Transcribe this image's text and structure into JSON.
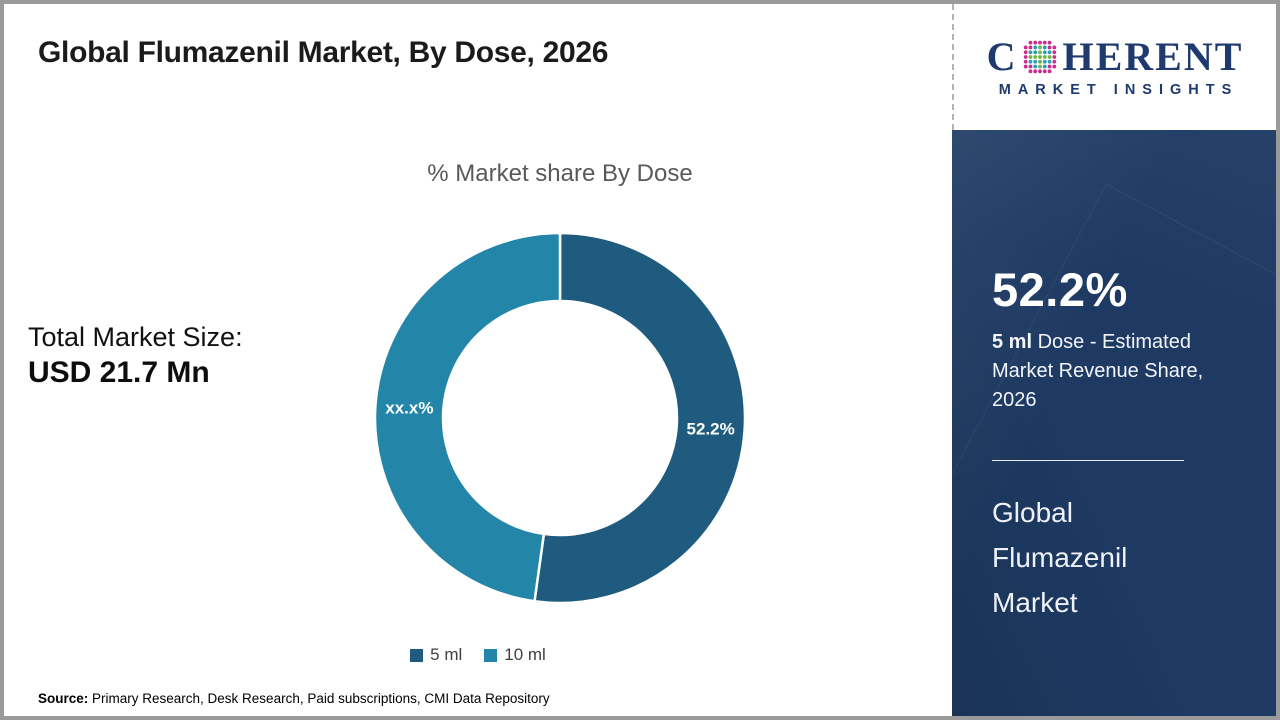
{
  "page": {
    "title": "Global Flumazenil Market, By Dose, 2026",
    "source_label": "Source:",
    "source_text": " Primary Research, Desk Research, Paid subscriptions, CMI Data Repository"
  },
  "left_stats": {
    "label": "Total Market Size:",
    "value": "USD 21.7 Mn"
  },
  "chart_data": {
    "type": "pie",
    "subtype": "donut",
    "title": "% Market share By Dose",
    "categories": [
      "5 ml",
      "10 ml"
    ],
    "values": [
      52.2,
      47.8
    ],
    "slice_labels": [
      "52.2%",
      "xx.x%"
    ],
    "colors": [
      "#1f5b7e",
      "#2385a8"
    ],
    "start_angle_deg": 0,
    "direction": "clockwise",
    "inner_radius_ratio": 0.632,
    "legend_position": "bottom",
    "slice_border_color": "#ffffff"
  },
  "sidebar": {
    "logo": {
      "brand_c": "C",
      "brand_rest": "HERENT",
      "subtitle": "MARKET INSIGHTS",
      "text_color": "#1e3a6e",
      "dot_colors": {
        "teal": "#2b9eb3",
        "green": "#6db644",
        "magenta": "#cb2c8e"
      }
    },
    "stat_value": "52.2%",
    "stat_desc_bold": "5 ml",
    "stat_desc_rest": " Dose - Estimated Market Revenue Share, 2026",
    "panel_title": "Global Flumazenil Market",
    "panel_bg": "#1e3a63"
  }
}
